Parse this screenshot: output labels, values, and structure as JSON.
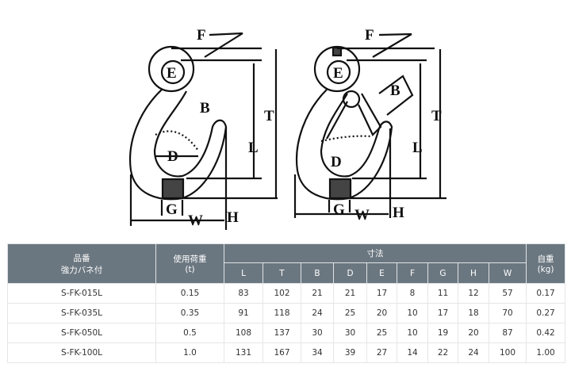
{
  "drawing": {
    "labels": {
      "F": "F",
      "E": "E",
      "B": "B",
      "T": "T",
      "L": "L",
      "D": "D",
      "G": "G",
      "W": "W",
      "H": "H"
    }
  },
  "table": {
    "header": {
      "product_line1": "品番",
      "product_line2": "強力バネ付",
      "load_line1": "使用荷重",
      "load_line2": "(t)",
      "dimensions": "寸法",
      "weight_line1": "自重",
      "weight_line2": "(kg)",
      "dim_columns": [
        "L",
        "T",
        "B",
        "D",
        "E",
        "F",
        "G",
        "H",
        "W"
      ]
    },
    "rows": [
      {
        "model": "S-FK-015L",
        "load": "0.15",
        "dims": [
          "83",
          "102",
          "21",
          "21",
          "17",
          "8",
          "11",
          "12",
          "57"
        ],
        "weight": "0.17"
      },
      {
        "model": "S-FK-035L",
        "load": "0.35",
        "dims": [
          "91",
          "118",
          "24",
          "25",
          "20",
          "10",
          "17",
          "18",
          "70"
        ],
        "weight": "0.27"
      },
      {
        "model": "S-FK-050L",
        "load": "0.5",
        "dims": [
          "108",
          "137",
          "30",
          "30",
          "25",
          "10",
          "19",
          "20",
          "87"
        ],
        "weight": "0.42"
      },
      {
        "model": "S-FK-100L",
        "load": "1.0",
        "dims": [
          "131",
          "167",
          "34",
          "39",
          "27",
          "14",
          "22",
          "24",
          "100"
        ],
        "weight": "1.00"
      }
    ],
    "colors": {
      "header_bg": "#6b7780",
      "header_text": "#ffffff"
    }
  }
}
